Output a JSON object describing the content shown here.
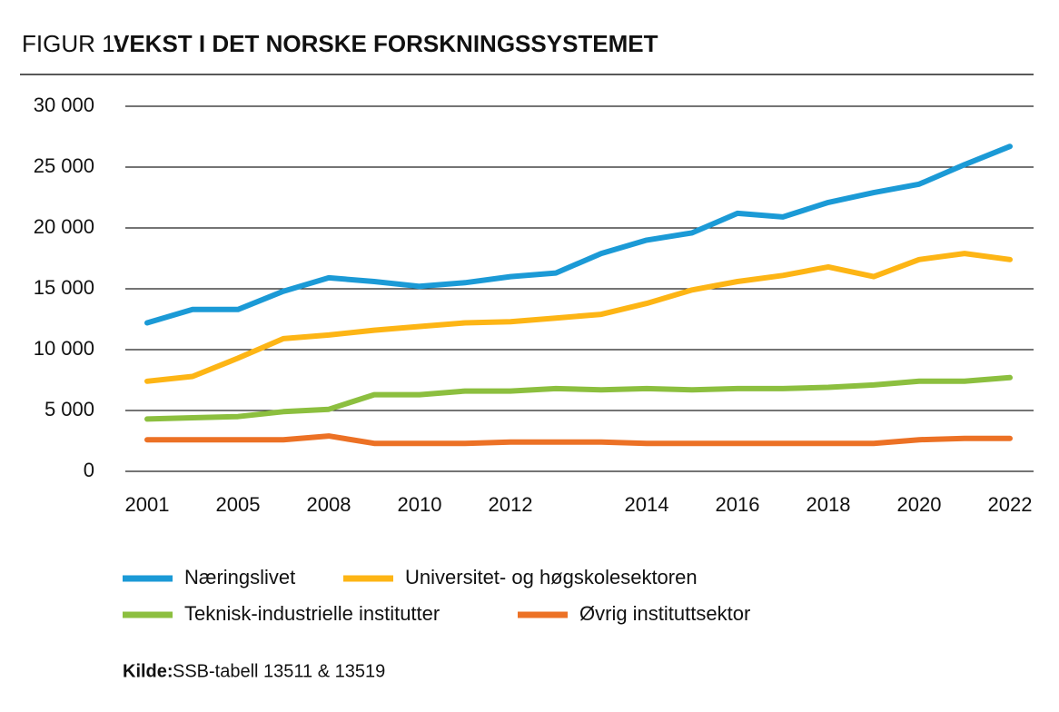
{
  "chart_data": {
    "type": "line",
    "title_prefix": "FIGUR 1:",
    "title": "VEKST I DET NORSKE FORSKNINGSSYSTEMET",
    "source_label": "Kilde:",
    "source": "SSB-tabell 13511 & 13519",
    "categories": [
      "2001",
      null,
      "2005",
      null,
      "2008",
      null,
      "2010",
      null,
      "2012",
      null,
      null,
      "2014",
      null,
      "2016",
      null,
      "2018",
      null,
      "2020",
      null,
      "2022"
    ],
    "ylim": [
      0,
      30000
    ],
    "yticks": [
      0,
      {
        "value": 5000,
        "label": "5 000"
      },
      {
        "value": 10000,
        "label": "10 000"
      },
      {
        "value": 15000,
        "label": "15 000"
      },
      {
        "value": 20000,
        "label": "20 000"
      },
      {
        "value": 25000,
        "label": "25 000"
      },
      {
        "value": 30000,
        "label": "30 000"
      }
    ],
    "grid": true,
    "series": [
      {
        "name": "Næringslivet",
        "color": "#1b9ad6",
        "values": [
          12200,
          13300,
          13300,
          14800,
          15900,
          15600,
          15200,
          15500,
          16000,
          16300,
          17900,
          19000,
          19600,
          21200,
          20900,
          22100,
          22900,
          23600,
          25200,
          26700
        ]
      },
      {
        "name": "Universitet- og høgskolesektoren",
        "color": "#fdb515",
        "values": [
          7400,
          7800,
          9300,
          10900,
          11200,
          11600,
          11900,
          12200,
          12300,
          12600,
          12900,
          13800,
          14900,
          15600,
          16100,
          16800,
          16000,
          17400,
          17900,
          17400
        ]
      },
      {
        "name": "Teknisk-industrielle institutter",
        "color": "#8cbf3f",
        "values": [
          4300,
          4400,
          4500,
          4900,
          5100,
          6300,
          6300,
          6600,
          6600,
          6800,
          6700,
          6800,
          6700,
          6800,
          6800,
          6900,
          7100,
          7400,
          7400,
          7700
        ]
      },
      {
        "name": "Øvrig instituttsektor",
        "color": "#ec7125",
        "values": [
          2600,
          2600,
          2600,
          2600,
          2900,
          2300,
          2300,
          2300,
          2400,
          2400,
          2400,
          2300,
          2300,
          2300,
          2300,
          2300,
          2300,
          2600,
          2700,
          2700
        ]
      }
    ]
  }
}
